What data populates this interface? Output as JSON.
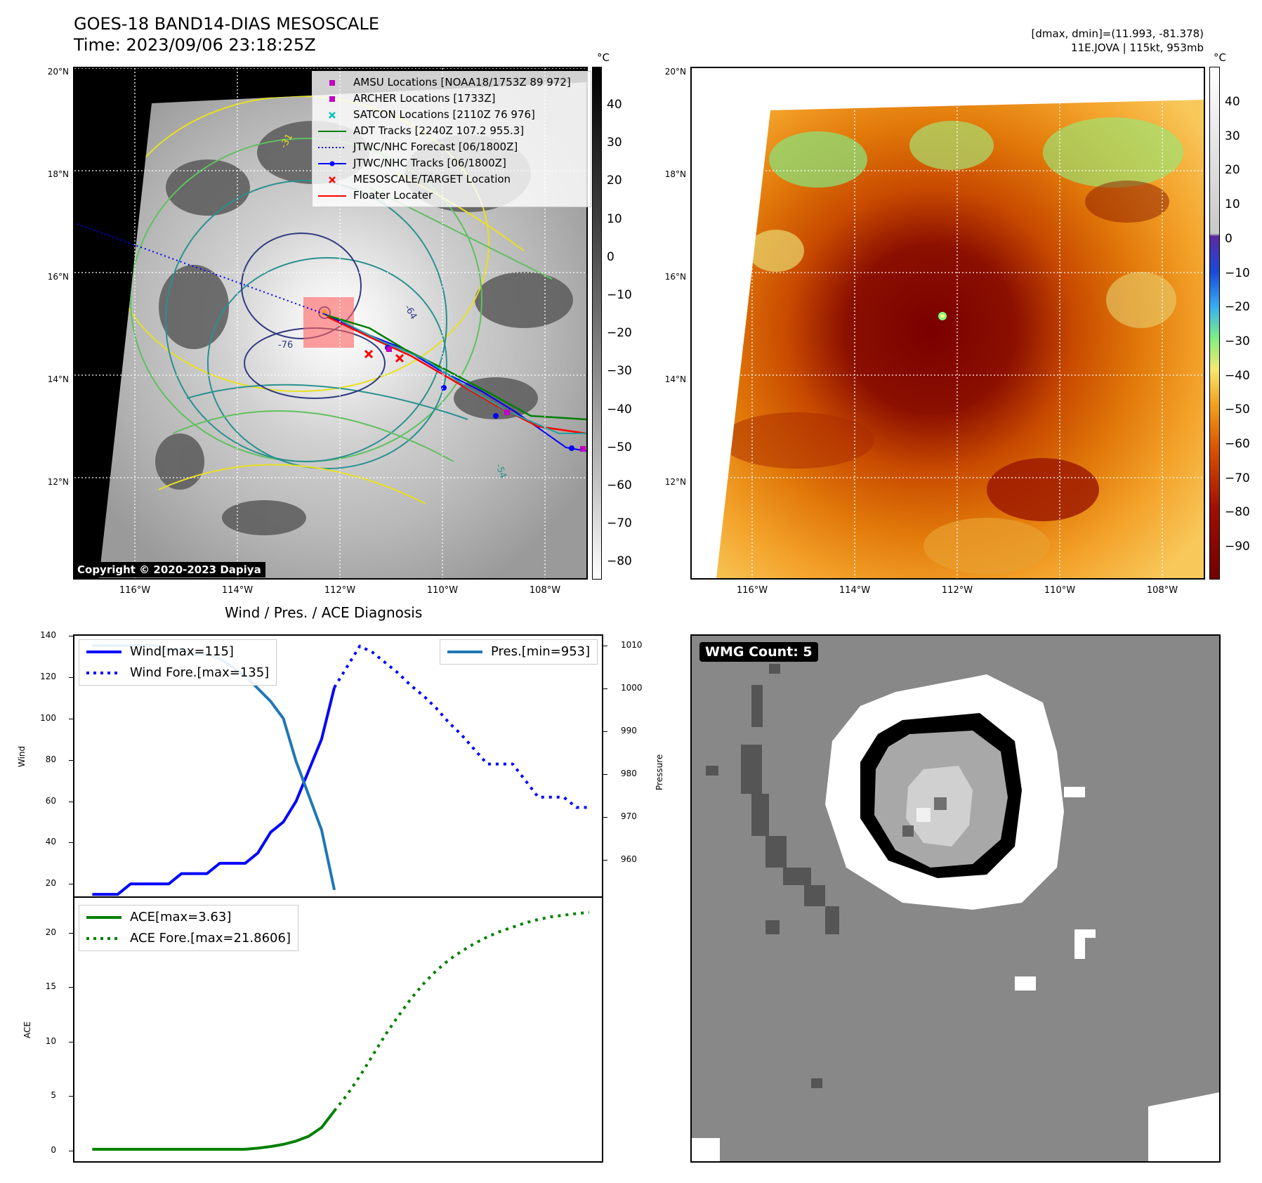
{
  "header": {
    "title": "GOES-18 BAND14-DIAS MESOSCALE",
    "time": "Time: 2023/09/06 23:18:25Z",
    "dmax_dmin": "[dmax, dmin]=(11.993, -81.378)",
    "storm": "11E.JOVA | 115kt, 953mb"
  },
  "ir_panel": {
    "lat_labels": [
      "20°N",
      "18°N",
      "16°N",
      "14°N",
      "12°N"
    ],
    "lon_labels": [
      "116°W",
      "114°W",
      "112°W",
      "110°W",
      "108°W"
    ],
    "colorbar_unit": "°C",
    "colorbar_ticks": [
      "40",
      "30",
      "20",
      "10",
      "0",
      "−10",
      "−20",
      "−30",
      "−40",
      "−50",
      "−60",
      "−70",
      "−80"
    ],
    "copyright": "Copyright © 2020-2023 Dapiya",
    "legend": [
      {
        "label": "AMSU Locations [NOAA18/1753Z 89 972]",
        "symbol": "square",
        "color": "#c000c0"
      },
      {
        "label": "ARCHER Locations [1733Z]",
        "symbol": "square",
        "color": "#c000c0"
      },
      {
        "label": "SATCON Locations [2110Z 76 976]",
        "symbol": "x",
        "color": "#00c0c0"
      },
      {
        "label": "ADT Tracks [2240Z 107.2 955.3]",
        "symbol": "line",
        "color": "#008000"
      },
      {
        "label": "JTWC/NHC Forecast [06/1800Z]",
        "symbol": "dotted",
        "color": "#0000ff"
      },
      {
        "label": "JTWC/NHC Tracks [06/1800Z]",
        "symbol": "line-dot",
        "color": "#0000ff"
      },
      {
        "label": "MESOSCALE/TARGET Location",
        "symbol": "x",
        "color": "#ff0000"
      },
      {
        "label": "Floater Locater",
        "symbol": "line",
        "color": "#ff0000"
      }
    ],
    "contour_labels": [
      "-76",
      "-64",
      "-54",
      "-31"
    ]
  },
  "color_panel": {
    "lat_labels": [
      "20°N",
      "18°N",
      "16°N",
      "14°N",
      "12°N"
    ],
    "lon_labels": [
      "116°W",
      "114°W",
      "112°W",
      "110°W",
      "108°W"
    ],
    "colorbar_unit": "°C",
    "colorbar_ticks": [
      "40",
      "30",
      "20",
      "10",
      "0",
      "−10",
      "−20",
      "−30",
      "−40",
      "−50",
      "−60",
      "−70",
      "−80",
      "−90"
    ]
  },
  "wmg_panel": {
    "label": "WMG Count: 5"
  },
  "chart_data": [
    {
      "type": "line",
      "title": "Wind / Pres. / ACE Diagnosis",
      "ylabel": "Wind",
      "y2label": "Pressure",
      "ylim": [
        14,
        140
      ],
      "y2lim": [
        951.5,
        1012.3
      ],
      "yticks": [
        "140",
        "120",
        "100",
        "80",
        "60",
        "40",
        "20"
      ],
      "y2ticks": [
        "1010",
        "1000",
        "990",
        "980",
        "970",
        "960"
      ],
      "legend_left": [
        "Wind[max=115]",
        "Wind Fore.[max=135]"
      ],
      "legend_right": [
        "Pres.[min=953]"
      ],
      "series": [
        {
          "name": "Wind[max=115]",
          "color": "#0000ff",
          "style": "solid",
          "x": [
            0,
            1,
            2,
            3,
            4,
            5,
            6,
            7,
            8,
            9,
            10,
            11,
            12,
            13,
            14,
            15,
            16,
            17,
            18,
            19
          ],
          "values": [
            15,
            15,
            15,
            20,
            20,
            20,
            20,
            25,
            25,
            25,
            30,
            30,
            30,
            35,
            45,
            50,
            60,
            75,
            90,
            115
          ]
        },
        {
          "name": "Wind Fore.[max=135]",
          "color": "#0000ff",
          "style": "dotted",
          "x": [
            19,
            20,
            21,
            22,
            23,
            24,
            25,
            26,
            27,
            28,
            29,
            30,
            31,
            32,
            33,
            34,
            35,
            36,
            37,
            38,
            39
          ],
          "values": [
            115,
            125,
            135,
            132,
            127,
            122,
            116,
            111,
            105,
            98,
            92,
            85,
            78,
            78,
            78,
            70,
            62,
            62,
            62,
            57,
            57
          ]
        },
        {
          "name": "Pres.[min=953]",
          "color": "#1f77b4",
          "style": "solid",
          "axis": "right",
          "x": [
            0,
            1,
            2,
            3,
            4,
            5,
            6,
            7,
            8,
            9,
            10,
            11,
            12,
            13,
            14,
            15,
            16,
            17,
            18,
            19
          ],
          "values": [
            1010,
            1010,
            1010,
            1010,
            1010,
            1010,
            1009,
            1009,
            1008,
            1008,
            1007,
            1005,
            1003,
            1000,
            997,
            993,
            983,
            975,
            967,
            953
          ]
        }
      ]
    },
    {
      "type": "line",
      "ylabel": "ACE",
      "ylim": [
        -1,
        23.2
      ],
      "yticks": [
        "20",
        "15",
        "10",
        "5",
        "0"
      ],
      "legend": [
        "ACE[max=3.63]",
        "ACE Fore.[max=21.8606]"
      ],
      "series": [
        {
          "name": "ACE[max=3.63]",
          "color": "#008000",
          "style": "solid",
          "x": [
            0,
            1,
            2,
            3,
            4,
            5,
            6,
            7,
            8,
            9,
            10,
            11,
            12,
            13,
            14,
            15,
            16,
            17,
            18,
            19
          ],
          "values": [
            0.1,
            0.1,
            0.1,
            0.1,
            0.1,
            0.1,
            0.1,
            0.1,
            0.1,
            0.1,
            0.1,
            0.1,
            0.1,
            0.2,
            0.35,
            0.55,
            0.85,
            1.3,
            2.1,
            3.63
          ]
        },
        {
          "name": "ACE Fore.[max=21.8606]",
          "color": "#008000",
          "style": "dotted",
          "x": [
            19,
            20,
            21,
            22,
            23,
            24,
            25,
            26,
            27,
            28,
            29,
            30,
            31,
            32,
            33,
            34,
            35,
            36,
            37,
            38,
            39
          ],
          "values": [
            3.63,
            5.1,
            6.8,
            8.7,
            10.6,
            12.3,
            13.9,
            15.3,
            16.5,
            17.5,
            18.3,
            19.0,
            19.6,
            20.1,
            20.5,
            20.9,
            21.2,
            21.45,
            21.6,
            21.75,
            21.86
          ]
        }
      ]
    }
  ]
}
